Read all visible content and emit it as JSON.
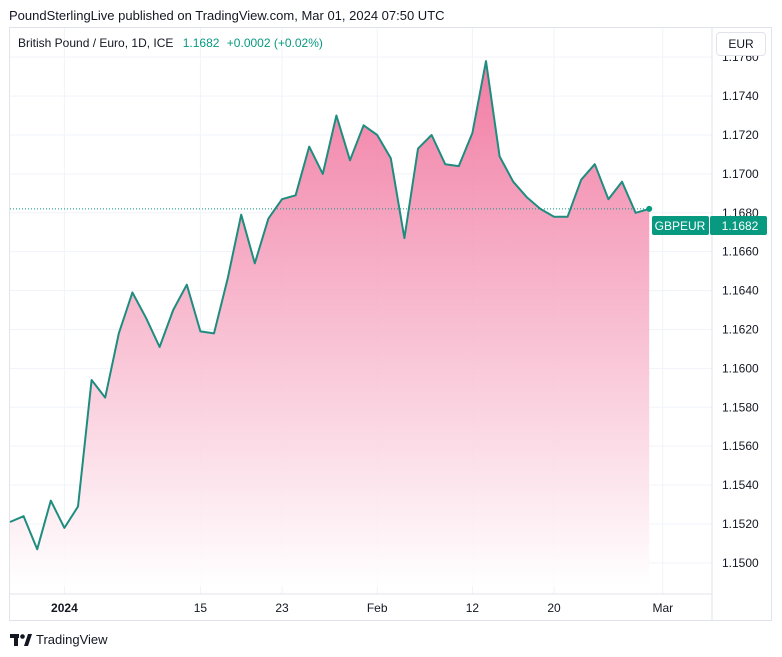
{
  "header": {
    "published": "PoundSterlingLive published on TradingView.com, Mar 01, 2024 07:50 UTC"
  },
  "legend": {
    "symbol": "British Pound / Euro, 1D, ICE",
    "last": "1.1682",
    "change": "+0.0002 (+0.02%)"
  },
  "currency_button": "EUR",
  "price_label": {
    "ticker": "GBPEUR",
    "value": "1.1682"
  },
  "footer": {
    "brand": "TradingView"
  },
  "colors": {
    "line": "#1e8c7e",
    "fill_top": "#f06e9a",
    "fill_bottom": "#ffffff",
    "accent": "#089981"
  },
  "chart_data": {
    "type": "area",
    "title": "British Pound / Euro, 1D, ICE",
    "xlabel": "",
    "ylabel": "EUR",
    "ylim": [
      1.1484,
      1.1775
    ],
    "y_ticks": [
      1.15,
      1.152,
      1.154,
      1.156,
      1.158,
      1.16,
      1.162,
      1.164,
      1.166,
      1.168,
      1.17,
      1.172,
      1.174,
      1.176
    ],
    "y_tick_labels": [
      "1.1500",
      "1.1520",
      "1.1540",
      "1.1560",
      "1.1580",
      "1.1600",
      "1.1620",
      "1.1640",
      "1.1660",
      "1.1680",
      "1.1700",
      "1.1720",
      "1.1740",
      "1.1760"
    ],
    "x_ticks": [
      {
        "label": "2024",
        "index": 4,
        "bold": true
      },
      {
        "label": "15",
        "index": 14,
        "bold": false
      },
      {
        "label": "23",
        "index": 20,
        "bold": false
      },
      {
        "label": "Feb",
        "index": 27,
        "bold": false
      },
      {
        "label": "12",
        "index": 34,
        "bold": false
      },
      {
        "label": "20",
        "index": 40,
        "bold": false
      },
      {
        "label": "Mar",
        "index": 48,
        "bold": false
      }
    ],
    "series": [
      {
        "name": "GBPEUR",
        "values": [
          1.1521,
          1.1524,
          1.1507,
          1.1532,
          1.1518,
          1.1529,
          1.1594,
          1.1585,
          1.1618,
          1.1639,
          1.1626,
          1.1611,
          1.163,
          1.1643,
          1.1619,
          1.1618,
          1.1646,
          1.1679,
          1.1654,
          1.1677,
          1.1687,
          1.1689,
          1.1714,
          1.17,
          1.173,
          1.1707,
          1.1725,
          1.172,
          1.1708,
          1.1667,
          1.1713,
          1.172,
          1.1705,
          1.1704,
          1.1721,
          1.1758,
          1.1709,
          1.1696,
          1.1688,
          1.1682,
          1.1678,
          1.1678,
          1.1697,
          1.1705,
          1.1687,
          1.1696,
          1.168,
          1.1682
        ]
      }
    ],
    "last_value": 1.1682
  }
}
